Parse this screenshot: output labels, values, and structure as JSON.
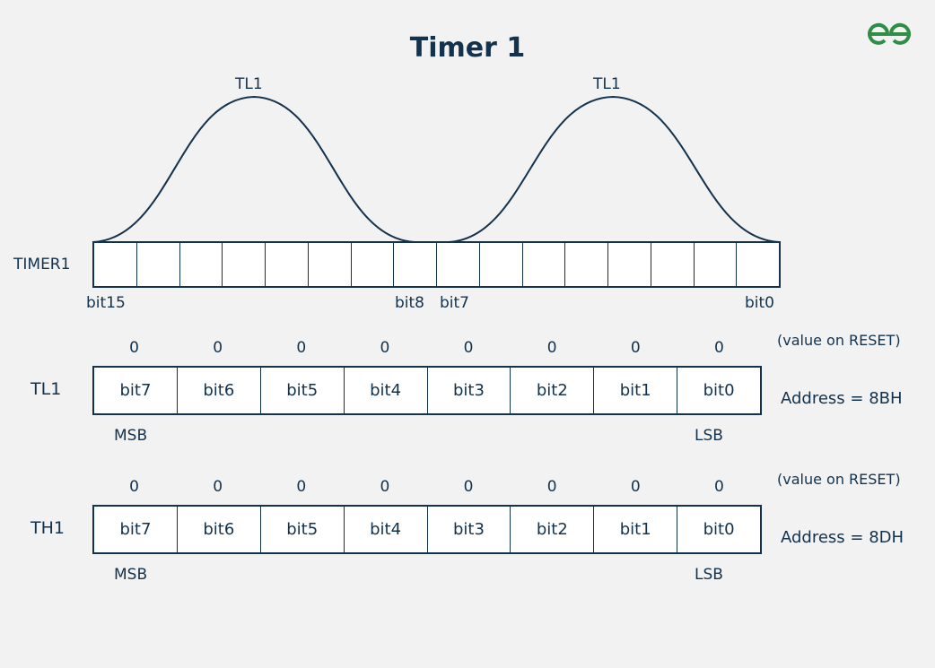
{
  "title": "Timer 1",
  "logo": "GfG",
  "timer1": {
    "label": "TIMER1",
    "curve_labels": [
      "TL1",
      "TL1"
    ],
    "bit_labels": {
      "bit15": "bit15",
      "bit8": "bit8",
      "bit7": "bit7",
      "bit0": "bit0"
    },
    "cell_count": 16
  },
  "registers": [
    {
      "name": "TL1",
      "reset_values": [
        "0",
        "0",
        "0",
        "0",
        "0",
        "0",
        "0",
        "0"
      ],
      "reset_note": "(value on RESET)",
      "bits": [
        "bit7",
        "bit6",
        "bit5",
        "bit4",
        "bit3",
        "bit2",
        "bit1",
        "bit0"
      ],
      "msb": "MSB",
      "lsb": "LSB",
      "address": "Address = 8BH"
    },
    {
      "name": "TH1",
      "reset_values": [
        "0",
        "0",
        "0",
        "0",
        "0",
        "0",
        "0",
        "0"
      ],
      "reset_note": "(value on RESET)",
      "bits": [
        "bit7",
        "bit6",
        "bit5",
        "bit4",
        "bit3",
        "bit2",
        "bit1",
        "bit0"
      ],
      "msb": "MSB",
      "lsb": "LSB",
      "address": "Address = 8DH"
    }
  ],
  "colors": {
    "ink": "#13324d",
    "logo": "#2f8d46",
    "bg": "#f2f2f2"
  }
}
